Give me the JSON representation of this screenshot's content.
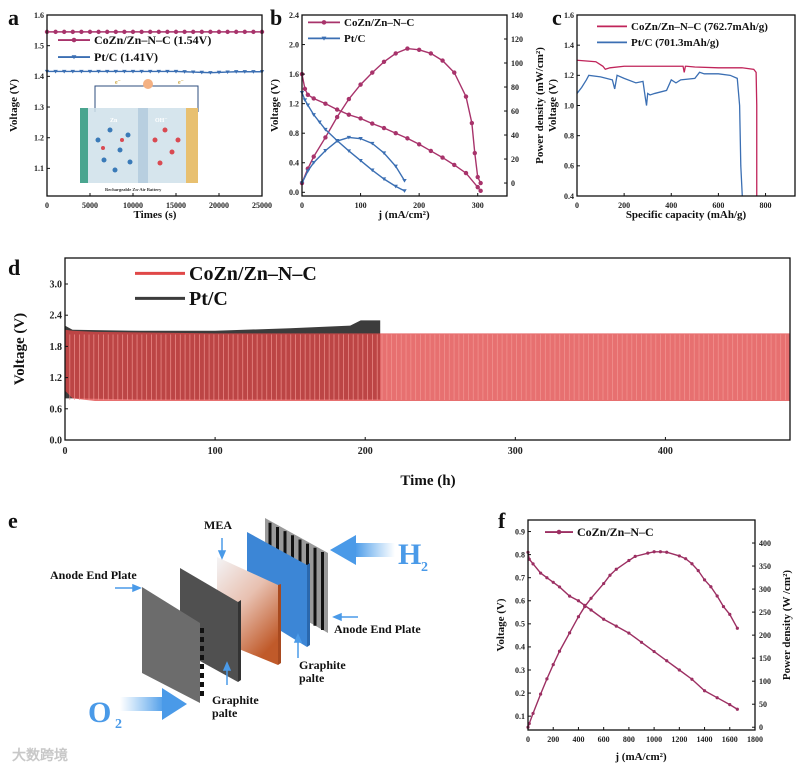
{
  "panels": {
    "a": "a",
    "b": "b",
    "c": "c",
    "d": "d",
    "e": "e",
    "f": "f"
  },
  "colors": {
    "coznMagenta": "#a8336b",
    "coznC": "#c0245a",
    "ptBlue": "#3b6fb3",
    "coznRed": "#e04848",
    "ptDark": "#3c3c3c"
  },
  "inset_a": {
    "title": "Rechargeable Zn-Air Battery",
    "zn": "Zn",
    "oh": "OH⁻",
    "e1": "e⁻",
    "e2": "e⁻"
  },
  "diagram_e": {
    "mea": "MEA",
    "anode_left": "Anode End Plate",
    "anode_right": "Anode End Plate",
    "graphite_left_1": "Graphite",
    "graphite_left_2": "palte",
    "graphite_right_1": "Graphite",
    "graphite_right_2": "palte",
    "o2": "O",
    "o2_sub": "2",
    "h2": "H",
    "h2_sub": "2"
  },
  "watermark": "大数跨境",
  "chart_data": [
    {
      "panel": "a",
      "type": "line",
      "xlabel": "Times (s)",
      "ylabel": "Voltage (V)",
      "xlim": [
        0,
        25000
      ],
      "ylim": [
        1.01,
        1.6
      ],
      "xticks": [
        "0",
        "5000",
        "10000",
        "15000",
        "20000",
        "25000"
      ],
      "yticks": [
        "1.1",
        "1.2",
        "1.3",
        "1.4",
        "1.5",
        "1.6"
      ],
      "series": [
        {
          "name": "CoZn/Zn–N–C (1.54V)",
          "color": "#a8336b",
          "marker": "circle",
          "axis": "y",
          "x": [
            0,
            1000,
            2000,
            3000,
            4000,
            5000,
            6000,
            7000,
            8000,
            9000,
            10000,
            11000,
            12000,
            13000,
            14000,
            15000,
            16000,
            17000,
            18000,
            19000,
            20000,
            21000,
            22000,
            23000,
            24000,
            25000
          ],
          "y": [
            1.545,
            1.545,
            1.545,
            1.545,
            1.545,
            1.545,
            1.545,
            1.545,
            1.545,
            1.545,
            1.545,
            1.545,
            1.545,
            1.545,
            1.545,
            1.545,
            1.545,
            1.545,
            1.545,
            1.545,
            1.545,
            1.545,
            1.545,
            1.545,
            1.545,
            1.545
          ]
        },
        {
          "name": "Pt/C (1.41V)",
          "color": "#3b6fb3",
          "marker": "tri",
          "axis": "y",
          "x": [
            0,
            1000,
            2000,
            3000,
            4000,
            5000,
            6000,
            7000,
            8000,
            9000,
            10000,
            11000,
            12000,
            13000,
            14000,
            15000,
            16000,
            17000,
            18000,
            19000,
            20000,
            21000,
            22000,
            23000,
            24000,
            25000
          ],
          "y": [
            1.416,
            1.416,
            1.416,
            1.416,
            1.416,
            1.416,
            1.416,
            1.416,
            1.416,
            1.416,
            1.416,
            1.416,
            1.416,
            1.416,
            1.416,
            1.416,
            1.415,
            1.414,
            1.413,
            1.412,
            1.413,
            1.414,
            1.415,
            1.415,
            1.415,
            1.415
          ]
        }
      ]
    },
    {
      "panel": "b",
      "type": "line",
      "xlabel": "j (mA/cm²)",
      "ylabel": "Voltage (V)",
      "y2label": "Power density (mW/cm²)",
      "xlim": [
        0,
        350
      ],
      "ylim": [
        -0.05,
        2.4
      ],
      "y2lim": [
        -10.8,
        140
      ],
      "xticks": [
        "0",
        "100",
        "200",
        "300"
      ],
      "yticks": [
        "0.0",
        "0.4",
        "0.8",
        "1.2",
        "1.6",
        "2.0",
        "2.4"
      ],
      "y2ticks": [
        "0",
        "20",
        "40",
        "60",
        "80",
        "100",
        "120",
        "140"
      ],
      "series": [
        {
          "name": "CoZn/Zn–N–C",
          "color": "#a8336b",
          "marker": "circle",
          "axis": "y",
          "legend": true,
          "x": [
            0,
            5,
            10,
            20,
            40,
            60,
            80,
            100,
            120,
            140,
            160,
            180,
            200,
            220,
            240,
            260,
            280,
            300,
            305
          ],
          "y": [
            1.6,
            1.4,
            1.32,
            1.27,
            1.2,
            1.12,
            1.05,
            1.0,
            0.93,
            0.87,
            0.8,
            0.73,
            0.65,
            0.56,
            0.47,
            0.37,
            0.26,
            0.07,
            0.02
          ]
        },
        {
          "name": "CoZn/Zn–N–C power",
          "color": "#a8336b",
          "marker": "circle",
          "axis": "y2",
          "legend": false,
          "x": [
            0,
            10,
            20,
            40,
            60,
            80,
            100,
            120,
            140,
            160,
            180,
            200,
            220,
            240,
            260,
            280,
            290,
            295,
            300,
            305
          ],
          "y": [
            0,
            12,
            22,
            38,
            55,
            70,
            82,
            92,
            101,
            108,
            112,
            111,
            108,
            102,
            92,
            72,
            50,
            25,
            5,
            0
          ]
        },
        {
          "name": "Pt/C",
          "color": "#3b6fb3",
          "marker": "tri",
          "axis": "y",
          "legend": true,
          "x": [
            0,
            5,
            10,
            20,
            30,
            40,
            60,
            80,
            100,
            120,
            140,
            160,
            175
          ],
          "y": [
            1.35,
            1.25,
            1.18,
            1.05,
            0.95,
            0.85,
            0.7,
            0.56,
            0.43,
            0.3,
            0.18,
            0.08,
            0.02
          ]
        },
        {
          "name": "Pt/C power",
          "color": "#3b6fb3",
          "marker": "tri",
          "axis": "y2",
          "legend": false,
          "x": [
            0,
            10,
            20,
            40,
            60,
            80,
            100,
            120,
            140,
            160,
            175
          ],
          "y": [
            0,
            10,
            17,
            27,
            35,
            38,
            37,
            33,
            25,
            14,
            2
          ]
        }
      ]
    },
    {
      "panel": "c",
      "type": "line",
      "xlabel": "Specific capacity (mAh/g)",
      "ylabel": "Voltage (V)",
      "xlim": [
        0,
        925
      ],
      "ylim": [
        0.4,
        1.6
      ],
      "xticks": [
        "0",
        "200",
        "400",
        "600",
        "800"
      ],
      "yticks": [
        "0.4",
        "0.6",
        "0.8",
        "1.0",
        "1.2",
        "1.4",
        "1.6"
      ],
      "series": [
        {
          "name": "CoZn/Zn–N–C (762.7mAh/g)",
          "color": "#c0245a",
          "marker": "none",
          "axis": "y",
          "legend": true,
          "x": [
            0,
            80,
            110,
            120,
            140,
            200,
            300,
            450,
            455,
            460,
            465,
            500,
            600,
            700,
            750,
            760,
            762.7,
            762.7
          ],
          "y": [
            1.3,
            1.29,
            1.26,
            1.24,
            1.25,
            1.26,
            1.26,
            1.26,
            1.22,
            1.26,
            1.26,
            1.255,
            1.25,
            1.25,
            1.24,
            1.22,
            1.0,
            0.4
          ]
        },
        {
          "name": "Pt/C (701.3mAh/g)",
          "color": "#3b6fb3",
          "marker": "none",
          "axis": "y",
          "legend": true,
          "x": [
            0,
            20,
            40,
            50,
            100,
            150,
            160,
            170,
            200,
            250,
            280,
            290,
            295,
            300,
            310,
            330,
            380,
            400,
            420,
            440,
            500,
            520,
            540,
            600,
            650,
            680,
            690,
            695,
            701.3
          ],
          "y": [
            1.08,
            1.12,
            1.17,
            1.2,
            1.19,
            1.17,
            1.11,
            1.2,
            1.18,
            1.15,
            1.16,
            1.05,
            1.0,
            1.08,
            1.07,
            1.08,
            1.1,
            1.17,
            1.15,
            1.17,
            1.18,
            1.22,
            1.21,
            1.21,
            1.2,
            1.18,
            1.0,
            0.6,
            0.4
          ]
        }
      ]
    },
    {
      "panel": "d",
      "type": "area",
      "xlabel": "Time (h)",
      "ylabel": "Voltage (V)",
      "xlim": [
        0,
        483
      ],
      "ylim": [
        0,
        3.5
      ],
      "xticks": [
        "0",
        "100",
        "200",
        "300",
        "400"
      ],
      "yticks": [
        "0.0",
        "0.6",
        "1.2",
        "1.8",
        "2.4",
        "3.0"
      ],
      "series": [
        {
          "name": "Pt/C",
          "color": "#3c3c3c",
          "axis": "y",
          "legend": true,
          "x": [
            0,
            5,
            50,
            100,
            150,
            190,
            197,
            210
          ],
          "upper": [
            2.2,
            2.12,
            2.1,
            2.1,
            2.15,
            2.2,
            2.3,
            2.3
          ],
          "lower": [
            0.8,
            0.8,
            0.78,
            0.78,
            0.78,
            0.78,
            0.78,
            0.78
          ]
        },
        {
          "name": "CoZn/Zn–N–C",
          "color": "#e04848",
          "axis": "y",
          "legend": true,
          "x": [
            0,
            5,
            20,
            100,
            200,
            300,
            400,
            483
          ],
          "upper": [
            2.12,
            2.1,
            2.08,
            2.05,
            2.05,
            2.05,
            2.05,
            2.05
          ],
          "lower": [
            0.95,
            0.8,
            0.75,
            0.75,
            0.75,
            0.75,
            0.75,
            0.75
          ]
        }
      ]
    },
    {
      "panel": "f",
      "type": "line",
      "xlabel": "j (mA/cm²)",
      "ylabel": "Voltage (V)",
      "y2label": "Power density (W /cm²)",
      "xlim": [
        0,
        1800
      ],
      "ylim": [
        0.04,
        0.95
      ],
      "y2lim": [
        -6,
        450
      ],
      "xticks": [
        "0",
        "200",
        "400",
        "600",
        "800",
        "1000",
        "1200",
        "1400",
        "1600",
        "1800"
      ],
      "yticks": [
        "0.1",
        "0.2",
        "0.3",
        "0.4",
        "0.5",
        "0.6",
        "0.7",
        "0.8",
        "0.9"
      ],
      "y2ticks": [
        "0",
        "50",
        "100",
        "150",
        "200",
        "250",
        "300",
        "350",
        "400"
      ],
      "series": [
        {
          "name": "CoZn/Zn–N–C",
          "color": "#9c2f62",
          "marker": "dot",
          "axis": "y",
          "legend": true,
          "x": [
            0,
            10,
            40,
            100,
            150,
            200,
            250,
            330,
            400,
            450,
            500,
            600,
            700,
            800,
            900,
            1000,
            1100,
            1200,
            1300,
            1400,
            1500,
            1600,
            1660
          ],
          "y": [
            0.81,
            0.78,
            0.76,
            0.72,
            0.7,
            0.68,
            0.66,
            0.62,
            0.6,
            0.58,
            0.56,
            0.52,
            0.49,
            0.46,
            0.42,
            0.38,
            0.34,
            0.3,
            0.26,
            0.21,
            0.18,
            0.15,
            0.13
          ]
        },
        {
          "name": "CoZn/Zn–N–C power",
          "color": "#9c2f62",
          "marker": "dot",
          "axis": "y2",
          "legend": false,
          "x": [
            0,
            10,
            40,
            100,
            150,
            200,
            250,
            330,
            400,
            450,
            500,
            600,
            650,
            700,
            800,
            850,
            950,
            1000,
            1050,
            1100,
            1200,
            1250,
            1300,
            1350,
            1400,
            1450,
            1500,
            1550,
            1600,
            1660
          ],
          "y": [
            0,
            8,
            30,
            72,
            105,
            136,
            165,
            205,
            240,
            262,
            280,
            312,
            330,
            343,
            362,
            371,
            378,
            381,
            381,
            380,
            372,
            366,
            355,
            340,
            320,
            305,
            285,
            262,
            245,
            215
          ]
        }
      ]
    }
  ]
}
